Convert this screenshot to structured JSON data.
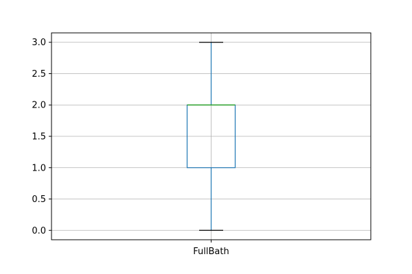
{
  "chart_data": {
    "type": "boxplot",
    "title": "",
    "xlabel": "",
    "ylabel": "",
    "ylim": [
      -0.15,
      3.15
    ],
    "yticks": [
      0.0,
      0.5,
      1.0,
      1.5,
      2.0,
      2.5,
      3.0
    ],
    "ytick_labels": [
      "0.0",
      "0.5",
      "1.0",
      "1.5",
      "2.0",
      "2.5",
      "3.0"
    ],
    "grid": true,
    "categories": [
      "FullBath"
    ],
    "boxes": [
      {
        "label": "FullBath",
        "whisker_low": 0.0,
        "q1": 1.0,
        "median": 2.0,
        "q3": 2.0,
        "whisker_high": 3.0
      }
    ],
    "colors": {
      "box": "#1f77b4",
      "whisker": "#1f77b4",
      "median": "#2ca02c",
      "cap": "#000000",
      "grid": "#b0b0b0",
      "axes": "#000000"
    }
  }
}
